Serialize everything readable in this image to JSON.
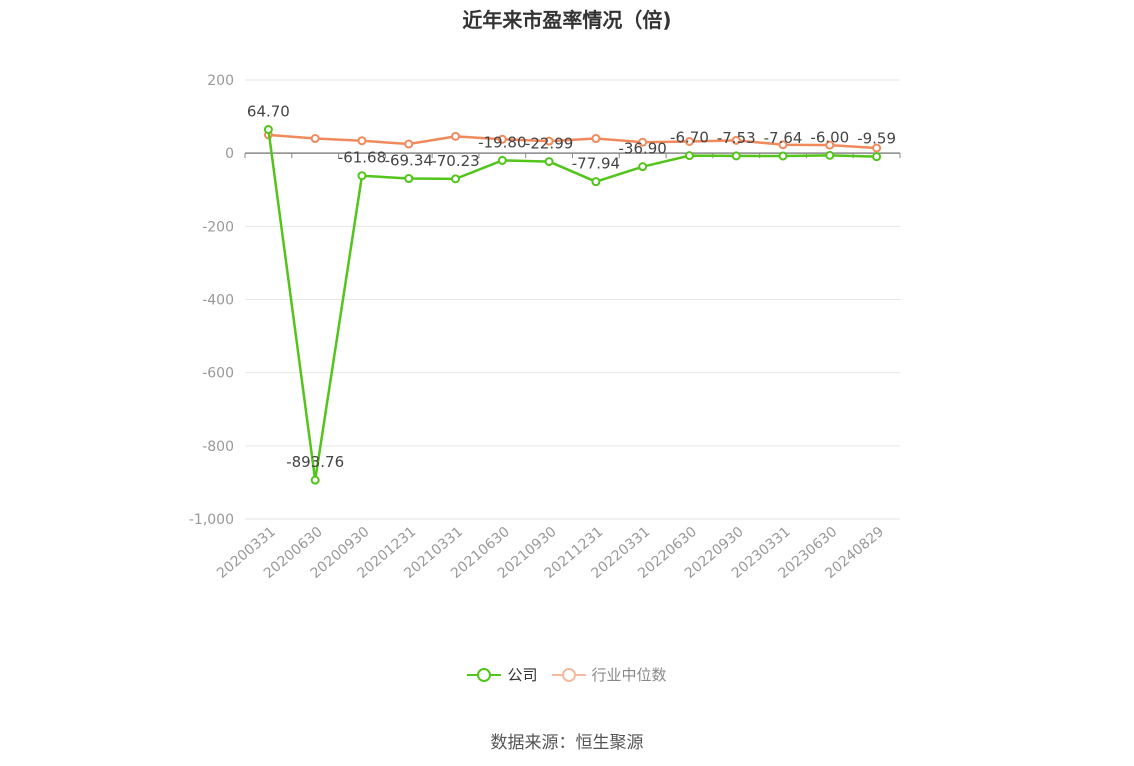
{
  "chart_data": {
    "type": "line",
    "title": "近年来市盈率情况（倍)",
    "xlabel": "",
    "ylabel": "",
    "categories": [
      "20200331",
      "20200630",
      "20200930",
      "20201231",
      "20210331",
      "20210630",
      "20210930",
      "20211231",
      "20220331",
      "20220630",
      "20220930",
      "20230331",
      "20230630",
      "20240829"
    ],
    "ylim": [
      -1000,
      200
    ],
    "yticks": [
      200,
      0,
      -200,
      -400,
      -600,
      -800,
      -1000
    ],
    "ytick_labels": [
      "200",
      "0",
      "-200",
      "-400",
      "-600",
      "-800",
      "-1,000"
    ],
    "grid": true,
    "legend_position": "bottom",
    "series": [
      {
        "name": "公司",
        "color": "#52c41a",
        "values": [
          64.7,
          -893.76,
          -61.68,
          -69.34,
          -70.23,
          -19.8,
          -22.99,
          -77.94,
          -36.9,
          -6.7,
          -7.53,
          -7.64,
          -6.0,
          -9.59
        ],
        "labels": [
          "64.70",
          "-893.76",
          "-61.68",
          "-69.34",
          "-70.23",
          "-19.80",
          "-22.99",
          "-77.94",
          "-36.90",
          "-6.70",
          "-7.53",
          "-7.64",
          "-6.00",
          "-9.59"
        ]
      },
      {
        "name": "行业中位数",
        "color": "#f08a5d",
        "values": [
          50,
          40,
          34,
          25,
          46,
          38,
          33,
          40,
          30,
          32,
          35,
          23,
          22,
          14
        ]
      }
    ],
    "source": "数据来源：恒生聚源"
  }
}
